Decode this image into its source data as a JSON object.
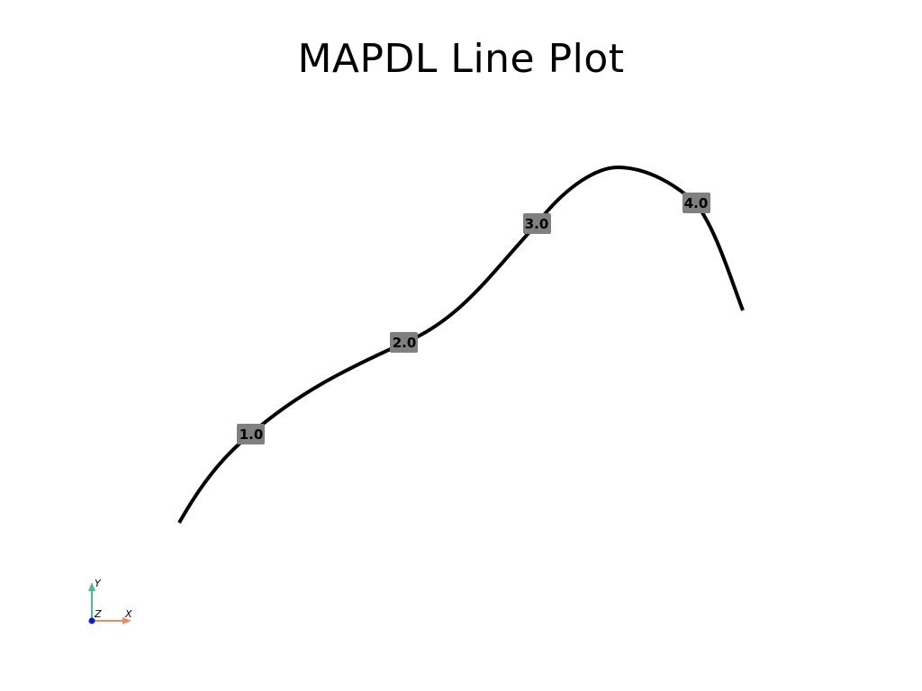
{
  "title": "MAPDL Line Plot",
  "lines": [
    {
      "label": "1.0"
    },
    {
      "label": "2.0"
    },
    {
      "label": "3.0"
    },
    {
      "label": "4.0"
    }
  ],
  "axes_triad": {
    "x_label": "X",
    "y_label": "Y",
    "z_label": "Z",
    "x_color": "#f08a5d",
    "y_color": "#4cbb8a",
    "z_color": "#1515d6"
  },
  "colors": {
    "background": "#ffffff",
    "line": "#000000",
    "label_background": "#808080"
  }
}
